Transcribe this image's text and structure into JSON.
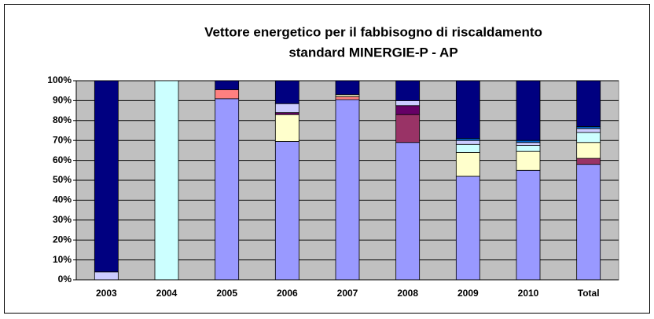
{
  "chart_data": {
    "type": "stacked_bar",
    "title": [
      "Vettore energetico per il fabbisogno di riscaldamento",
      "standard MINERGIE-P - AP"
    ],
    "categories": [
      "2003",
      "2004",
      "2005",
      "2006",
      "2007",
      "2008",
      "2009",
      "2010",
      "Total"
    ],
    "series": [
      {
        "color": "#9999ff",
        "values": [
          0,
          0,
          91,
          69.5,
          90.5,
          69,
          52,
          55,
          58
        ]
      },
      {
        "color": "#993366",
        "values": [
          0,
          0,
          0,
          0,
          0,
          14,
          0,
          0,
          3
        ]
      },
      {
        "color": "#ff8080",
        "values": [
          0,
          0,
          4.5,
          0,
          1.5,
          0,
          0,
          0,
          0
        ]
      },
      {
        "color": "#ffffcc",
        "values": [
          0,
          0,
          0,
          13.5,
          1,
          0,
          12,
          9.5,
          8
        ]
      },
      {
        "color": "#660066",
        "values": [
          0,
          0,
          0,
          1,
          0,
          4.5,
          0,
          0,
          0
        ]
      },
      {
        "color": "#ccffff",
        "values": [
          0,
          100,
          0,
          0,
          0,
          0,
          4,
          3,
          5
        ]
      },
      {
        "color": "#ccccff",
        "values": [
          4,
          0,
          0,
          4.5,
          0,
          2.5,
          2,
          1.5,
          2
        ]
      },
      {
        "color": "#0066cc",
        "values": [
          0,
          0,
          0,
          0,
          0,
          0,
          1,
          1,
          1
        ]
      },
      {
        "color": "#000080",
        "values": [
          96,
          0,
          4.5,
          11.5,
          7,
          10,
          29,
          30,
          23
        ]
      }
    ],
    "ylim": [
      0,
      100
    ],
    "yticks": [
      {
        "value": 0,
        "label": "0%"
      },
      {
        "value": 10,
        "label": "10%"
      },
      {
        "value": 20,
        "label": "20%"
      },
      {
        "value": 30,
        "label": "30%"
      },
      {
        "value": 40,
        "label": "40%"
      },
      {
        "value": 50,
        "label": "50%"
      },
      {
        "value": 60,
        "label": "60%"
      },
      {
        "value": 70,
        "label": "70%"
      },
      {
        "value": 80,
        "label": "80%"
      },
      {
        "value": 90,
        "label": "90%"
      },
      {
        "value": 100,
        "label": "100%"
      }
    ],
    "grid": true,
    "background": "#c0c0c0"
  }
}
